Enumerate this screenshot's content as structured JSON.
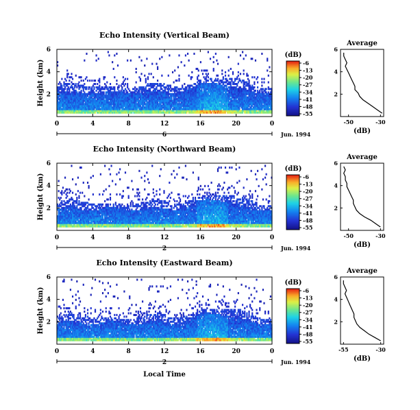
{
  "chart_data": [
    {
      "type": "heatmap",
      "title": "Echo Intensity (Vertical Beam)",
      "ylabel": "Height (km)",
      "xlabel": "",
      "x_ticks": [
        "0",
        "4",
        "8",
        "12",
        "16",
        "20",
        "0"
      ],
      "y_ticks": [
        "6",
        "4",
        "2"
      ],
      "xlim": [
        0,
        24
      ],
      "ylim": [
        0,
        6
      ],
      "day_label": "6",
      "date_label": "Jun. 1994",
      "colorbar": {
        "unit": "(dB)",
        "levels": [
          "-6",
          "-13",
          "-20",
          "-27",
          "-34",
          "-41",
          "-48",
          "-55"
        ]
      },
      "profile": {
        "title": "Average",
        "xlabel": "(dB)",
        "x_ticks": [
          "-50",
          "-30"
        ],
        "y_ticks": [
          "6",
          "4",
          "2"
        ],
        "xlim": [
          -55,
          -28
        ],
        "ylim": [
          0,
          6
        ],
        "heights": [
          0.3,
          0.6,
          0.9,
          1.2,
          1.5,
          1.8,
          2.1,
          2.4,
          2.7,
          3.0,
          3.3,
          3.6,
          3.9,
          4.2,
          4.5,
          4.8,
          5.1,
          5.4,
          5.7
        ],
        "values": [
          -29,
          -32,
          -35,
          -38,
          -41,
          -43,
          -44,
          -46,
          -46,
          -47,
          -48,
          -49,
          -50,
          -51,
          -52,
          -51,
          -52,
          -53,
          -53
        ]
      }
    },
    {
      "type": "heatmap",
      "title": "Echo Intensity (Northward Beam)",
      "ylabel": "Height (km)",
      "xlabel": "",
      "x_ticks": [
        "0",
        "4",
        "8",
        "12",
        "16",
        "20",
        "0"
      ],
      "y_ticks": [
        "6",
        "4",
        "2"
      ],
      "xlim": [
        0,
        24
      ],
      "ylim": [
        0,
        6
      ],
      "day_label": "2",
      "date_label": "Jun. 1994",
      "colorbar": {
        "unit": "(dB)",
        "levels": [
          "-6",
          "-13",
          "-20",
          "-27",
          "-34",
          "-41",
          "-48",
          "-55"
        ]
      },
      "profile": {
        "title": "Average",
        "xlabel": "(dB)",
        "x_ticks": [
          "-50",
          "-30"
        ],
        "y_ticks": [
          "6",
          "4",
          "2"
        ],
        "xlim": [
          -55,
          -28
        ],
        "ylim": [
          0,
          6
        ],
        "heights": [
          0.3,
          0.6,
          0.9,
          1.2,
          1.5,
          1.8,
          2.1,
          2.4,
          2.7,
          3.0,
          3.3,
          3.6,
          3.9,
          4.2,
          4.5,
          4.8,
          5.1,
          5.4,
          5.7
        ],
        "values": [
          -30,
          -33,
          -36,
          -40,
          -43,
          -45,
          -46,
          -47,
          -47,
          -48,
          -49,
          -50,
          -51,
          -51,
          -52,
          -52,
          -53,
          -52,
          -53
        ]
      }
    },
    {
      "type": "heatmap",
      "title": "Echo Intensity (Eastward Beam)",
      "ylabel": "Height (km)",
      "xlabel": "Local Time",
      "x_ticks": [
        "0",
        "4",
        "8",
        "12",
        "16",
        "20",
        "0"
      ],
      "y_ticks": [
        "6",
        "4",
        "2"
      ],
      "xlim": [
        0,
        24
      ],
      "ylim": [
        0,
        6
      ],
      "day_label": "2",
      "date_label": "Jun. 1994",
      "colorbar": {
        "unit": "(dB)",
        "levels": [
          "-6",
          "-13",
          "-20",
          "-27",
          "-34",
          "-41",
          "-48",
          "-55"
        ]
      },
      "profile": {
        "title": "Average",
        "xlabel": "(dB)",
        "x_ticks": [
          "-55",
          "-30"
        ],
        "y_ticks": [
          "6",
          "4",
          "2"
        ],
        "xlim": [
          -57,
          -28
        ],
        "ylim": [
          0,
          6
        ],
        "heights": [
          0.3,
          0.6,
          0.9,
          1.2,
          1.5,
          1.8,
          2.1,
          2.4,
          2.7,
          3.0,
          3.3,
          3.6,
          3.9,
          4.2,
          4.5,
          4.8,
          5.1,
          5.4,
          5.7
        ],
        "values": [
          -30,
          -34,
          -38,
          -41,
          -44,
          -46,
          -47,
          -48,
          -48,
          -49,
          -50,
          -51,
          -52,
          -53,
          -54,
          -53,
          -54,
          -55,
          -55
        ]
      }
    }
  ]
}
